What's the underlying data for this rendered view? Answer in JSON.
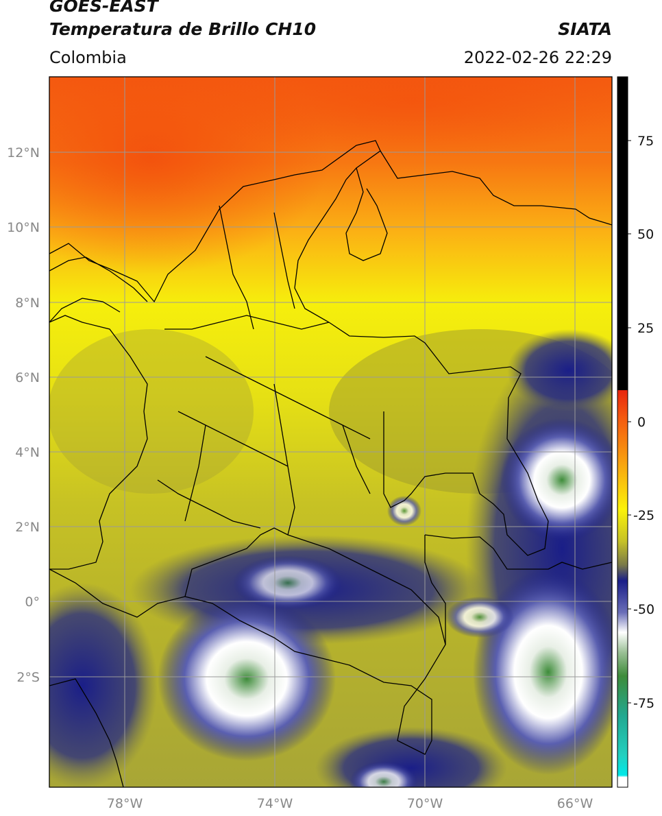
{
  "header": {
    "satellite": "GOES-EAST",
    "product": "Temperatura de Brillo CH10",
    "region": "Colombia",
    "source": "SIATA",
    "datetime": "2022-02-26 22:29"
  },
  "map": {
    "lat_labels": [
      "12°N",
      "10°N",
      "8°N",
      "6°N",
      "4°N",
      "2°N",
      "0°",
      "2°S"
    ],
    "lon_labels": [
      "78°W",
      "74°W",
      "70°W",
      "66°W"
    ],
    "gridline_color": "#9a9a9a",
    "border_color": "#000000"
  },
  "colorbar": {
    "tick_labels": [
      "75",
      "50",
      "25",
      "0",
      "-25",
      "-50",
      "-75"
    ],
    "colors": {
      "black": "#000000",
      "red": "#e8260e",
      "orange": "#f78c10",
      "yellow": "#fbf20a",
      "olive": "#9e9a2e",
      "navy": "#1a1e88",
      "white": "#ffffff",
      "green": "#3e8c3a",
      "teal": "#22d0c0",
      "cyan": "#00e8e8"
    }
  }
}
